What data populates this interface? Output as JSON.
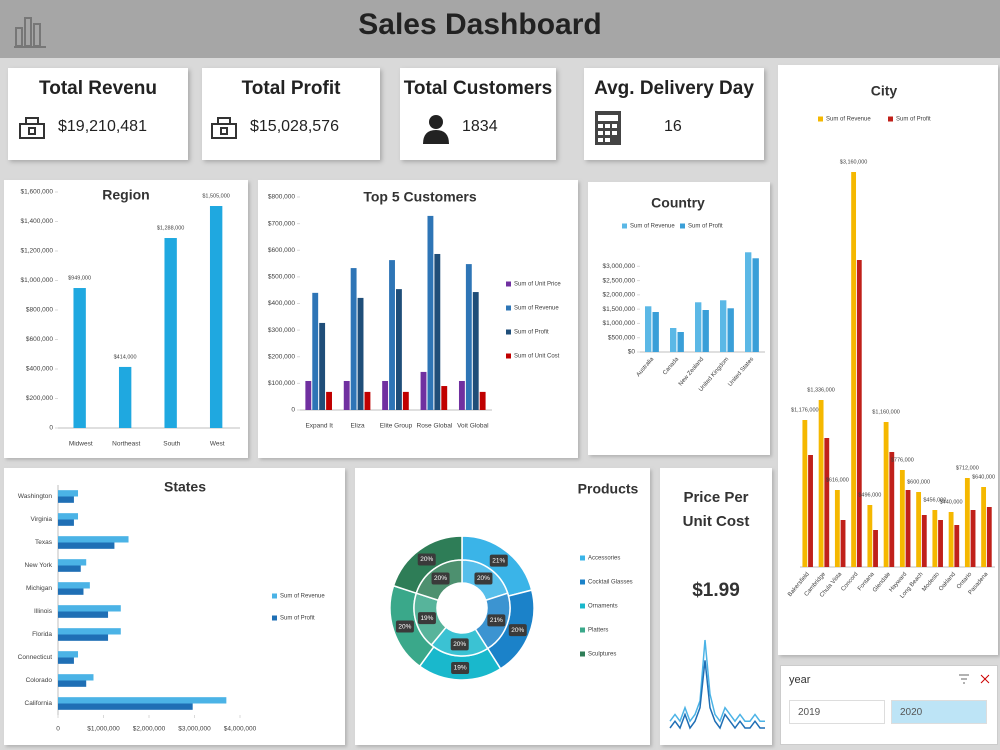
{
  "header": {
    "title": "Sales Dashboard"
  },
  "kpis": [
    {
      "title": "Total Revenu",
      "value": "$19,210,481"
    },
    {
      "title": "Total Profit",
      "value": "$15,028,576"
    },
    {
      "title": "Total Customers",
      "value": "1834"
    },
    {
      "title": "Avg. Delivery Day",
      "value": "16"
    }
  ],
  "price_card": {
    "title": "Price Per Unit Cost",
    "value": "$1.99"
  },
  "slicer": {
    "title": "year",
    "items": [
      "2019",
      "2020"
    ]
  },
  "chart_data": [
    {
      "type": "bar",
      "title": "Region",
      "categories": [
        "Midwest",
        "Northeast",
        "South",
        "West"
      ],
      "values": [
        949000,
        414000,
        1288000,
        1505000
      ],
      "value_labels": [
        "$949,000",
        "$414,000",
        "$1,288,000",
        "$1,505,000"
      ],
      "color": "#1fa8e0",
      "ylim": [
        0,
        1600000
      ],
      "yticks": [
        0,
        {
          "value": 200000,
          "label": "$200,000"
        },
        {
          "value": 400000,
          "label": "$400,000"
        },
        {
          "value": 600000,
          "label": "$600,000"
        },
        {
          "value": 800000,
          "label": "$800,000"
        },
        {
          "value": 1000000,
          "label": "$1,000,000"
        },
        {
          "value": 1200000,
          "label": "$1,200,000"
        },
        {
          "value": 1400000,
          "label": "$1,400,000"
        },
        {
          "value": 1600000,
          "label": "$1,600,000"
        }
      ]
    },
    {
      "type": "bar",
      "title": "Top 5 Customers",
      "categories": [
        "Expand It",
        "Eliza",
        "Elite Group",
        "Rose Global",
        "Voit Global"
      ],
      "series": [
        {
          "name": "Sum of Unit Price",
          "color": "#7030a0",
          "values": [
            109000,
            109000,
            109000,
            143000,
            109000
          ]
        },
        {
          "name": "Sum of Revenue",
          "color": "#2e75b6",
          "values": [
            440000,
            533000,
            563000,
            729000,
            548000
          ]
        },
        {
          "name": "Sum of Profit",
          "color": "#1f4e79",
          "values": [
            327000,
            421000,
            454000,
            586000,
            443000
          ]
        },
        {
          "name": "Sum of Unit Cost",
          "color": "#c00000",
          "values": [
            68000,
            68000,
            68000,
            90000,
            68000
          ]
        }
      ],
      "ylim": [
        0,
        800000
      ],
      "yticks": [
        0,
        {
          "value": 100000,
          "label": "$100,000"
        },
        {
          "value": 200000,
          "label": "$200,000"
        },
        {
          "value": 300000,
          "label": "$300,000"
        },
        {
          "value": 400000,
          "label": "$400,000"
        },
        {
          "value": 500000,
          "label": "$500,000"
        },
        {
          "value": 600000,
          "label": "$600,000"
        },
        {
          "value": 700000,
          "label": "$700,000"
        },
        {
          "value": 800000,
          "label": "$800,000"
        }
      ],
      "legend": "right"
    },
    {
      "type": "bar",
      "title": "Country",
      "categories": [
        "Australia",
        "Canada",
        "New Zealand",
        "United Kingdom",
        "United States"
      ],
      "series": [
        {
          "name": "Sum of Revenue",
          "color": "#5bb8e6",
          "values": [
            1600000,
            840000,
            1740000,
            1810000,
            3490000
          ]
        },
        {
          "name": "Sum of Profit",
          "color": "#3a9fd8",
          "values": [
            1400000,
            700000,
            1470000,
            1530000,
            3280000
          ]
        }
      ],
      "ylim": [
        0,
        3500000
      ],
      "yticks": [
        {
          "value": 0,
          "label": "$0"
        },
        {
          "value": 500000,
          "label": "$500,000"
        },
        {
          "value": 1000000,
          "label": "$1,000,000"
        },
        {
          "value": 1500000,
          "label": "$1,500,000"
        },
        {
          "value": 2000000,
          "label": "$2,000,000"
        },
        {
          "value": 2500000,
          "label": "$2,500,000"
        },
        {
          "value": 3000000,
          "label": "$3,000,000"
        }
      ],
      "legend": "top"
    },
    {
      "type": "bar",
      "title": "City",
      "categories": [
        "Bakersfield",
        "Cambridge",
        "Chula Vista",
        "Concord",
        "Fontana",
        "Glendale",
        "Hayward",
        "Long Beach",
        "Modesto",
        "Oakland",
        "Ontario",
        "Pasadena"
      ],
      "series": [
        {
          "name": "Sum of Revenue",
          "color": "#f5b800",
          "values": [
            1176000,
            1336000,
            616000,
            3160000,
            496000,
            1160000,
            776000,
            600000,
            456000,
            440000,
            712000,
            640000
          ],
          "value_labels": [
            "$1,176,000",
            "$1,336,000",
            "$616,000",
            "$3,160,000",
            "$496,000",
            "$1,160,000",
            "$776,000",
            "$600,000",
            "$456,000",
            "$440,000",
            "$712,000",
            "$640,000"
          ]
        },
        {
          "name": "Sum of Profit",
          "color": "#c0201a",
          "values": [
            896000,
            1032000,
            376000,
            2456000,
            296000,
            920000,
            616000,
            416000,
            376000,
            336000,
            456000,
            480000
          ]
        }
      ],
      "legend": "top"
    },
    {
      "type": "hbar",
      "title": "States",
      "categories": [
        "Washington",
        "Virginia",
        "Texas",
        "New York",
        "Michigan",
        "Illinois",
        "Florida",
        "Connecticut",
        "Colorado",
        "California"
      ],
      "series": [
        {
          "name": "Sum of Revenue",
          "color": "#4bb3e6",
          "values": [
            440000,
            440000,
            1550000,
            620000,
            700000,
            1380000,
            1380000,
            440000,
            780000,
            3700000
          ]
        },
        {
          "name": "Sum of Profit",
          "color": "#1f6fb5",
          "values": [
            350000,
            350000,
            1240000,
            500000,
            560000,
            1100000,
            1100000,
            350000,
            620000,
            2960000
          ]
        }
      ],
      "xlim": [
        0,
        4000000
      ],
      "xticks": [
        0,
        {
          "value": 1000000,
          "label": "$1,000,000"
        },
        {
          "value": 2000000,
          "label": "$2,000,000"
        },
        {
          "value": 3000000,
          "label": "$3,000,000"
        },
        {
          "value": 4000000,
          "label": "$4,000,000"
        }
      ],
      "legend": "right"
    },
    {
      "type": "donut",
      "title": "Products",
      "categories": [
        "Accessories",
        "Cocktail Glasses",
        "Ornaments",
        "Platters",
        "Sculptures"
      ],
      "colors": [
        "#3ab4e8",
        "#1b82c9",
        "#19b8cc",
        "#3aa88a",
        "#2e7d57"
      ],
      "series": [
        {
          "values": [
            21,
            20,
            19,
            20,
            20
          ],
          "value_labels": [
            "21%",
            "20%",
            "19%",
            "20%",
            "20%"
          ]
        },
        {
          "values": [
            20,
            21,
            20,
            19,
            20
          ],
          "value_labels": [
            "20%",
            "21%",
            "20%",
            "19%",
            "20%"
          ]
        }
      ],
      "legend": "right"
    },
    {
      "type": "line",
      "series": [
        {
          "color": "#4bb3e6",
          "values": [
            2,
            3,
            2,
            4,
            2,
            3,
            5,
            14,
            6,
            3,
            2,
            4,
            3,
            2,
            3,
            2,
            2,
            3,
            2,
            2
          ]
        },
        {
          "color": "#1f6fb5",
          "values": [
            1,
            2,
            1,
            3,
            1,
            2,
            4,
            11,
            4,
            2,
            1,
            3,
            2,
            1,
            2,
            1,
            1,
            2,
            1,
            1
          ]
        }
      ]
    }
  ]
}
